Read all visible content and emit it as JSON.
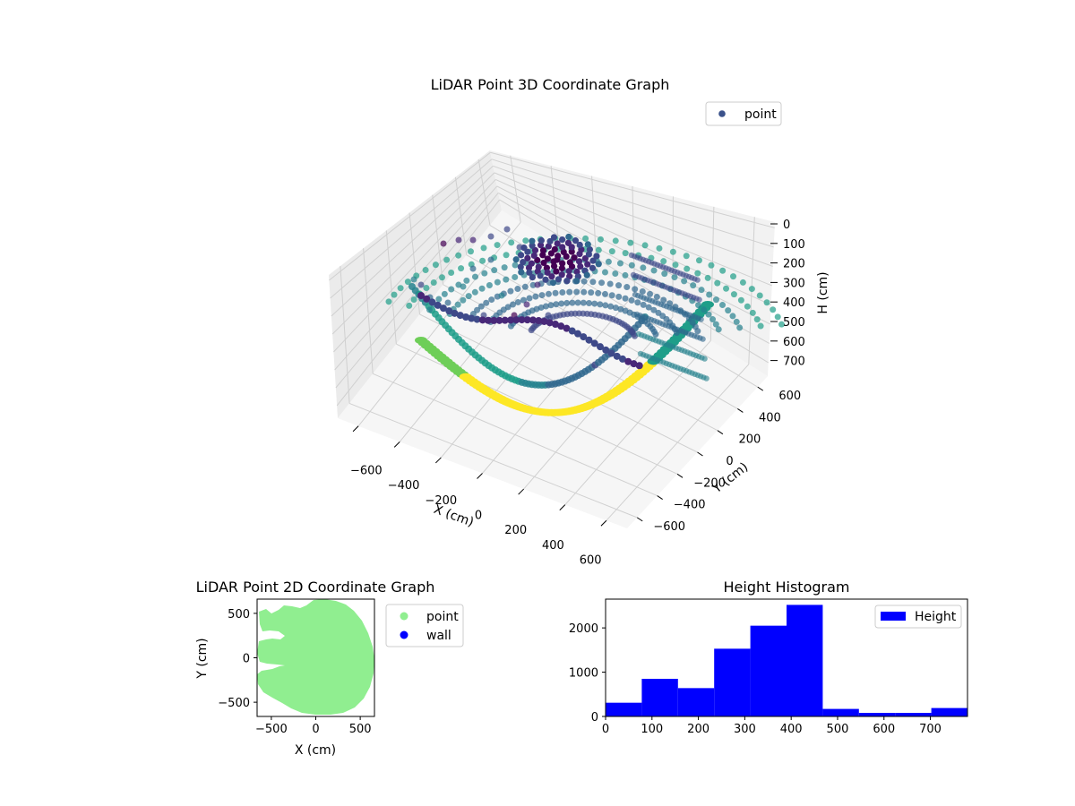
{
  "chart_data": [
    {
      "type": "scatter",
      "projection": "3d",
      "title": "LiDAR Point 3D Coordinate Graph",
      "xlabel": "X (cm)",
      "ylabel": "Y (cm)",
      "zlabel": "H (cm)",
      "x_ticks": [
        "−600",
        "−400",
        "−200",
        "0",
        "200",
        "400",
        "600"
      ],
      "y_ticks": [
        "−600",
        "−400",
        "−200",
        "0",
        "200",
        "400",
        "600"
      ],
      "z_ticks": [
        "0",
        "100",
        "200",
        "300",
        "400",
        "500",
        "600",
        "700"
      ],
      "xlim": [
        -650,
        650
      ],
      "ylim": [
        -650,
        650
      ],
      "zlim": [
        0,
        780
      ],
      "z_inverted": true,
      "colormap": "viridis",
      "legend": {
        "position": "top-right",
        "entries": [
          {
            "name": "point",
            "color": "#3b528b"
          }
        ]
      },
      "series": [
        {
          "name": "point"
        }
      ]
    },
    {
      "type": "scatter",
      "title": "LiDAR Point 2D Coordinate Graph",
      "xlabel": "X (cm)",
      "ylabel": "Y (cm)",
      "x_ticks": [
        -500,
        0,
        500
      ],
      "y_ticks": [
        -500,
        0,
        500
      ],
      "xlim": [
        -660,
        660
      ],
      "ylim": [
        -660,
        660
      ],
      "legend": {
        "position": "outside-right",
        "entries": [
          {
            "name": "point",
            "color": "#90ee90"
          },
          {
            "name": "wall",
            "color": "#0000ff"
          }
        ]
      },
      "series": [
        {
          "name": "point",
          "color": "#90ee90"
        },
        {
          "name": "wall",
          "color": "#0000ff"
        }
      ]
    },
    {
      "type": "bar",
      "subtype": "histogram",
      "title": "Height Histogram",
      "xlabel": "",
      "ylabel": "",
      "bin_edges": [
        0,
        78,
        156,
        234,
        312,
        390,
        468,
        546,
        624,
        702,
        780
      ],
      "values": [
        310,
        850,
        640,
        1530,
        2050,
        2520,
        170,
        80,
        80,
        190
      ],
      "x_ticks": [
        0,
        100,
        200,
        300,
        400,
        500,
        600,
        700
      ],
      "y_ticks": [
        0,
        1000,
        2000
      ],
      "xlim": [
        0,
        780
      ],
      "ylim": [
        0,
        2650
      ],
      "color": "#0000ff",
      "legend": {
        "position": "top-right",
        "entries": [
          {
            "name": "Height",
            "color": "#0000ff"
          }
        ]
      },
      "series": [
        {
          "name": "Height"
        }
      ]
    }
  ]
}
